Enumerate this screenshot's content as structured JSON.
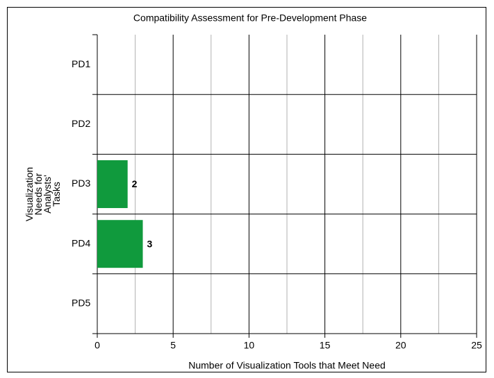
{
  "chart_data": {
    "type": "bar",
    "orientation": "horizontal",
    "title": "Compatibility Assessment for Pre-Development Phase",
    "xlabel": "Number of Visualization Tools that Meet Need",
    "ylabel": [
      "Visualization",
      "Needs for",
      "Analysts'",
      "Tasks"
    ],
    "categories": [
      "PD1",
      "PD2",
      "PD3",
      "PD4",
      "PD5"
    ],
    "values": [
      null,
      null,
      2,
      3,
      null
    ],
    "color": "#109a3d",
    "xlim": [
      0,
      25
    ],
    "xticks": [
      0,
      5,
      10,
      15,
      20,
      25
    ],
    "xticks_minor": [
      2.5,
      7.5,
      12.5,
      17.5,
      22.5
    ],
    "grid": true
  }
}
